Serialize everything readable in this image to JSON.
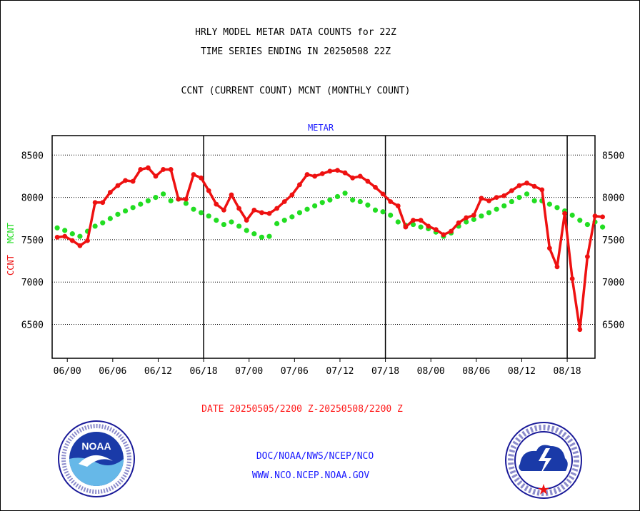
{
  "header": {
    "line1": "HRLY MODEL METAR DATA COUNTS for 22Z",
    "line2": "TIME SERIES ENDING IN 20250508 22Z",
    "line3": "CCNT (CURRENT COUNT) MCNT (MONTHLY COUNT)"
  },
  "footer": {
    "date_range": "DATE 20250505/2200 Z-20250508/2200 Z",
    "url1": "DOC/NOAA/NWS/NCEP/NCO",
    "url2": "WWW.NCO.NCEP.NOAA.GOV"
  },
  "logos": {
    "left": "NOAA",
    "right": "NATIONAL WEATHER SERVICE"
  },
  "colors": {
    "ccnt": "#ee1111",
    "mcnt": "#22dd22",
    "panel_title": "#1a1aff",
    "date_text": "#ff1a1a"
  },
  "chart_data": {
    "type": "line",
    "panel_title": "METAR",
    "ylabel_left_1": "CCNT",
    "ylabel_left_2": "MCNT",
    "ylim": [
      6100,
      8730
    ],
    "yticks": [
      6500,
      7000,
      7500,
      8000,
      8500
    ],
    "ytick_labels": [
      "6500",
      "7000",
      "7500",
      "8000",
      "8500"
    ],
    "xlim": [
      -0.67,
      71.0
    ],
    "xtick_positions": [
      1.33,
      7.33,
      13.33,
      19.33,
      25.33,
      31.33,
      37.33,
      43.33,
      49.33,
      55.33,
      61.33,
      67.33
    ],
    "xtick_labels": [
      "06/00",
      "06/06",
      "06/12",
      "06/18",
      "07/00",
      "07/06",
      "07/12",
      "07/18",
      "08/00",
      "08/06",
      "08/12",
      "08/18"
    ],
    "day_separators": [
      19.33,
      43.33,
      67.33
    ],
    "grid": true,
    "series": [
      {
        "name": "CCNT",
        "values": [
          7530,
          7540,
          7490,
          7430,
          7490,
          7940,
          7940,
          8060,
          8140,
          8200,
          8190,
          8330,
          8350,
          8250,
          8330,
          8330,
          7980,
          7980,
          8270,
          8230,
          8080,
          7920,
          7850,
          8030,
          7870,
          7730,
          7850,
          7820,
          7810,
          7870,
          7950,
          8030,
          8150,
          8270,
          8250,
          8280,
          8310,
          8320,
          8290,
          8230,
          8250,
          8190,
          8120,
          8040,
          7950,
          7900,
          7650,
          7730,
          7730,
          7660,
          7620,
          7560,
          7600,
          7700,
          7760,
          7790,
          7990,
          7960,
          8000,
          8020,
          8080,
          8140,
          8170,
          8130,
          8090,
          7400,
          7180,
          7810,
          7040,
          6440,
          7300,
          7780,
          7770
        ]
      },
      {
        "name": "MCNT",
        "values": [
          7640,
          7610,
          7570,
          7540,
          7600,
          7660,
          7700,
          7750,
          7800,
          7840,
          7880,
          7920,
          7960,
          8000,
          8040,
          7960,
          7980,
          7930,
          7860,
          7820,
          7780,
          7730,
          7680,
          7710,
          7660,
          7610,
          7570,
          7530,
          7540,
          7690,
          7730,
          7770,
          7820,
          7860,
          7900,
          7940,
          7970,
          8010,
          8050,
          7970,
          7950,
          7910,
          7850,
          7830,
          7790,
          7710,
          7670,
          7680,
          7650,
          7630,
          7590,
          7540,
          7580,
          7660,
          7710,
          7740,
          7780,
          7820,
          7860,
          7900,
          7950,
          8000,
          8040,
          7960,
          7960,
          7920,
          7880,
          7840,
          7790,
          7730,
          7680,
          7710,
          7650
        ]
      }
    ]
  }
}
